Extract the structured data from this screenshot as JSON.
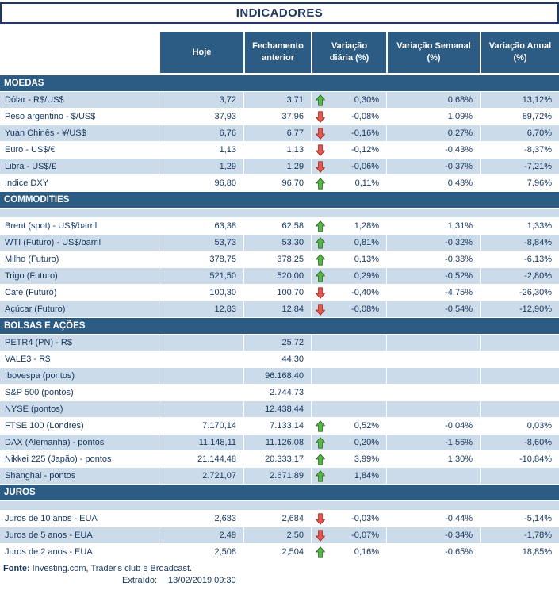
{
  "title": "INDICADORES",
  "columns": [
    "Hoje",
    "Fechamento anterior",
    "Variação diária (%)",
    "Variação Semanal (%)",
    "Variação Anual (%)"
  ],
  "colors": {
    "header_bg": "#2C5B84",
    "band": "#CCDBEA",
    "text": "#17365D",
    "arrow_up": "#56B949",
    "arrow_up_stroke": "#2F6B27",
    "arrow_down": "#E8584E",
    "arrow_down_stroke": "#9E2B23"
  },
  "sections": [
    {
      "id": "moedas",
      "name": "MOEDAS",
      "gap_after_header": false,
      "rows": [
        {
          "label": "Dólar - R$/US$",
          "hoje": "3,72",
          "prev": "3,71",
          "arrow": "up",
          "daily": "0,30%",
          "weekly": "0,68%",
          "annual": "13,12%"
        },
        {
          "label": "Peso argentino - $/US$",
          "hoje": "37,93",
          "prev": "37,96",
          "arrow": "down",
          "daily": "-0,08%",
          "weekly": "1,09%",
          "annual": "89,72%"
        },
        {
          "label": "Yuan Chinês - ¥/US$",
          "hoje": "6,76",
          "prev": "6,77",
          "arrow": "down",
          "daily": "-0,16%",
          "weekly": "0,27%",
          "annual": "6,70%"
        },
        {
          "label": "Euro - US$/€",
          "hoje": "1,13",
          "prev": "1,13",
          "arrow": "down",
          "daily": "-0,12%",
          "weekly": "-0,43%",
          "annual": "-8,37%"
        },
        {
          "label": "Libra - US$/£",
          "hoje": "1,29",
          "prev": "1,29",
          "arrow": "down",
          "daily": "-0,06%",
          "weekly": "-0,37%",
          "annual": "-7,21%"
        },
        {
          "label": "Índice DXY",
          "hoje": "96,80",
          "prev": "96,70",
          "arrow": "up",
          "daily": "0,11%",
          "weekly": "0,43%",
          "annual": "7,96%"
        }
      ]
    },
    {
      "id": "commodities",
      "name": "COMMODITIES",
      "gap_after_header": true,
      "rows": [
        {
          "label": "Brent (spot) - US$/barril",
          "hoje": "63,38",
          "prev": "62,58",
          "arrow": "up",
          "daily": "1,28%",
          "weekly": "1,31%",
          "annual": "1,33%"
        },
        {
          "label": "WTI (Futuro) - US$/barril",
          "hoje": "53,73",
          "prev": "53,30",
          "arrow": "up",
          "daily": "0,81%",
          "weekly": "-0,32%",
          "annual": "-8,84%"
        },
        {
          "label": "Milho (Futuro)",
          "hoje": "378,75",
          "prev": "378,25",
          "arrow": "up",
          "daily": "0,13%",
          "weekly": "-0,33%",
          "annual": "-6,13%"
        },
        {
          "label": "Trigo (Futuro)",
          "hoje": "521,50",
          "prev": "520,00",
          "arrow": "up",
          "daily": "0,29%",
          "weekly": "-0,52%",
          "annual": "-2,80%"
        },
        {
          "label": "Café (Futuro)",
          "hoje": "100,30",
          "prev": "100,70",
          "arrow": "down",
          "daily": "-0,40%",
          "weekly": "-4,75%",
          "annual": "-26,30%"
        },
        {
          "label": "Açúcar (Futuro)",
          "hoje": "12,83",
          "prev": "12,84",
          "arrow": "down",
          "daily": "-0,08%",
          "weekly": "-0,54%",
          "annual": "-12,90%"
        }
      ]
    },
    {
      "id": "bolsas",
      "name": "BOLSAS E AÇÕES",
      "gap_after_header": false,
      "rows": [
        {
          "label": "PETR4 (PN) - R$",
          "hoje": "",
          "prev": "25,72",
          "arrow": "none",
          "daily": "",
          "weekly": "",
          "annual": ""
        },
        {
          "label": "VALE3 - R$",
          "hoje": "",
          "prev": "44,30",
          "arrow": "none",
          "daily": "",
          "weekly": "",
          "annual": ""
        },
        {
          "label": "Ibovespa (pontos)",
          "hoje": "",
          "prev": "96.168,40",
          "arrow": "none",
          "daily": "",
          "weekly": "",
          "annual": ""
        },
        {
          "label": "S&P 500 (pontos)",
          "hoje": "",
          "prev": "2.744,73",
          "arrow": "none",
          "daily": "",
          "weekly": "",
          "annual": ""
        },
        {
          "label": "NYSE (pontos)",
          "hoje": "",
          "prev": "12.438,44",
          "arrow": "none",
          "daily": "",
          "weekly": "",
          "annual": ""
        },
        {
          "label": "FTSE 100 (Londres)",
          "hoje": "7.170,14",
          "prev": "7.133,14",
          "arrow": "up",
          "daily": "0,52%",
          "weekly": "-0,04%",
          "annual": "0,03%"
        },
        {
          "label": "DAX (Alemanha) - pontos",
          "hoje": "11.148,11",
          "prev": "11.126,08",
          "arrow": "up",
          "daily": "0,20%",
          "weekly": "-1,56%",
          "annual": "-8,60%"
        },
        {
          "label": "Nikkei 225 (Japão) - pontos",
          "hoje": "21.144,48",
          "prev": "20.333,17",
          "arrow": "up",
          "daily": "3,99%",
          "weekly": "1,30%",
          "annual": "-10,84%"
        },
        {
          "label": "Shanghai - pontos",
          "hoje": "2.721,07",
          "prev": "2.671,89",
          "arrow": "up",
          "daily": "1,84%",
          "weekly": "",
          "annual": ""
        }
      ]
    },
    {
      "id": "juros",
      "name": "JUROS",
      "gap_after_header": true,
      "rows": [
        {
          "label": "Juros de 10 anos - EUA",
          "hoje": "2,683",
          "prev": "2,684",
          "arrow": "down",
          "daily": "-0,03%",
          "weekly": "-0,44%",
          "annual": "-5,14%"
        },
        {
          "label": "Juros de 5 anos - EUA",
          "hoje": "2,49",
          "prev": "2,50",
          "arrow": "down",
          "daily": "-0,07%",
          "weekly": "-0,34%",
          "annual": "-1,78%"
        },
        {
          "label": "Juros de 2 anos - EUA",
          "hoje": "2,508",
          "prev": "2,504",
          "arrow": "up",
          "daily": "0,16%",
          "weekly": "-0,65%",
          "annual": "18,85%"
        }
      ]
    }
  ],
  "footer": {
    "fonte_label": "Fonte:",
    "fonte_text": " Investing.com, Trader's club e Broadcast.",
    "extraido_label": "Extraído:",
    "extraido_value": "13/02/2019 09:30"
  }
}
